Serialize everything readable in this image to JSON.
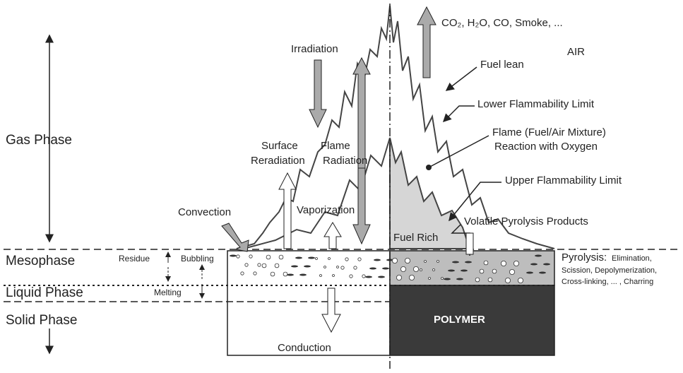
{
  "phases": [
    "Gas Phase",
    "Mesophase",
    "Liquid Phase",
    "Solid Phase"
  ],
  "processes": {
    "irradiation": "Irradiation",
    "surface_reradiation": [
      "Surface",
      "Reradiation"
    ],
    "flame_radiation": [
      "Flame",
      "Radiation"
    ],
    "convection": "Convection",
    "vaporization": "Vaporization",
    "conduction": "Conduction",
    "residue": "Residue",
    "bubbling": "Bubbling",
    "melting": "Melting"
  },
  "annotations": {
    "products": "CO₂, H₂O, CO, Smoke, ...",
    "air": "AIR",
    "fuel_lean": "Fuel lean",
    "lower_limit": "Lower Flammability Limit",
    "flame": [
      "Flame (Fuel/Air Mixture)",
      "Reaction with Oxygen"
    ],
    "upper_limit": "Upper Flammability Limit",
    "volatile": "Volatile Pyrolysis Products",
    "fuel_rich": "Fuel Rich",
    "polymer": "POLYMER"
  },
  "pyrolysis": {
    "title": "Pyrolysis:",
    "lines": [
      "Elimination,",
      "Scission, Depolymerization,",
      "Cross-linking, ... , Charring"
    ]
  }
}
